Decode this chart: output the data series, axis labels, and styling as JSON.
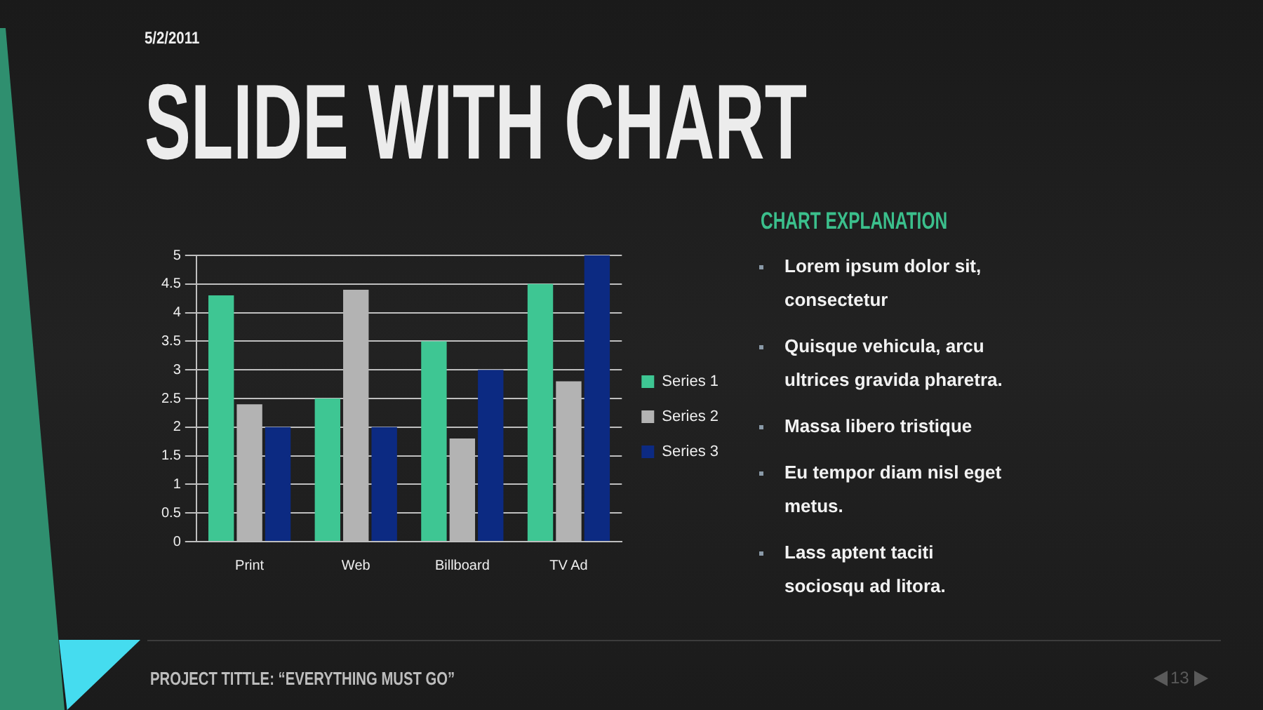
{
  "chart_data": {
    "type": "bar",
    "title": "SLIDE WITH CHART",
    "categories": [
      "Print",
      "Web",
      "Billboard",
      "TV Ad"
    ],
    "series": [
      {
        "name": "Series 1",
        "color": "#3ec693",
        "values": [
          4.3,
          2.5,
          3.5,
          4.5
        ]
      },
      {
        "name": "Series 2",
        "color": "#b3b3b3",
        "values": [
          2.4,
          4.4,
          1.8,
          2.8
        ]
      },
      {
        "name": "Series 3",
        "color": "#0c2a82",
        "values": [
          2,
          2,
          3,
          5
        ]
      }
    ],
    "ylim": [
      0,
      5
    ],
    "yticks": [
      0,
      0.5,
      1,
      1.5,
      2,
      2.5,
      3,
      3.5,
      4,
      4.5,
      5
    ],
    "grid": "y",
    "legend": "right",
    "annotations": [
      "5/2/2011",
      "CHART EXPLANATION",
      "Lorem ipsum dolor sit, consectetur",
      "Quisque vehicula, arcu ultrices gravida pharetra.",
      "Massa libero tristique",
      "Eu tempor diam nisl eget metus.",
      "Lass aptent taciti sociosqu ad litora.",
      "PROJECT TITTLE: “EVERYTHING MUST GO”",
      "13"
    ]
  }
}
